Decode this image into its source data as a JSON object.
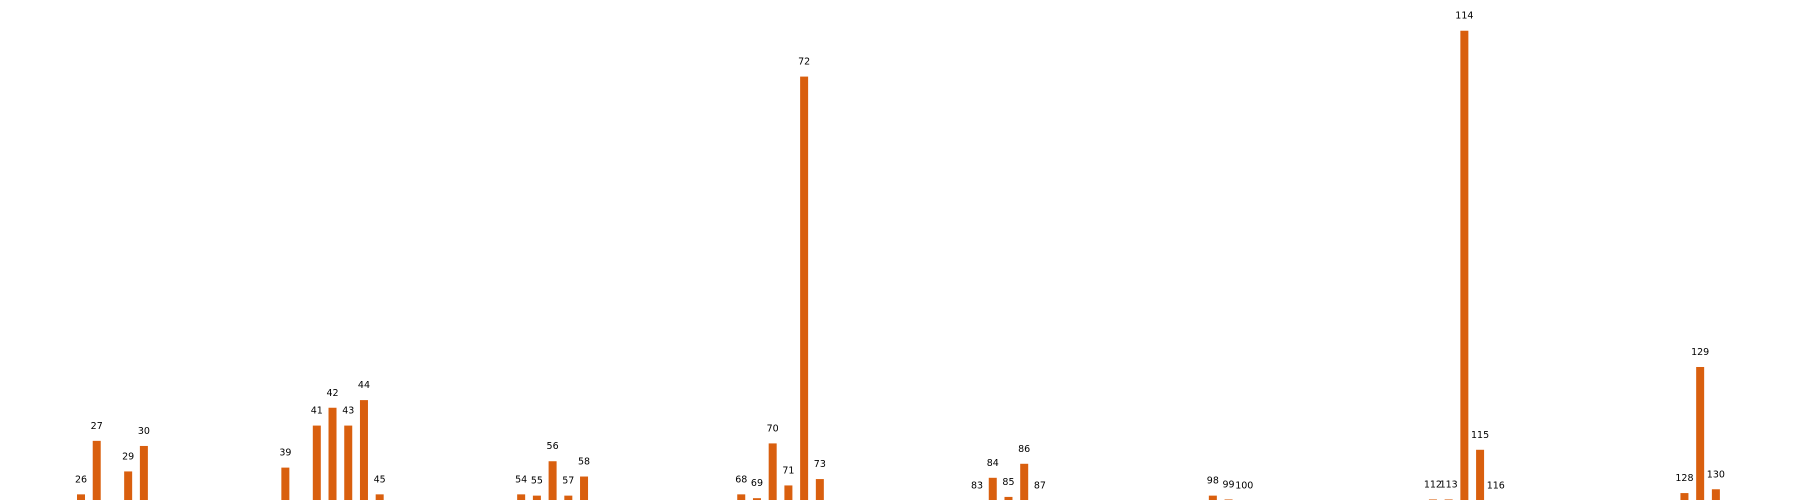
{
  "chart_data": {
    "type": "bar",
    "title": "",
    "xlabel": "",
    "ylabel": "",
    "grid": false,
    "ylim": [
      0,
      190
    ],
    "bar_color": "#d95f0e",
    "bars": [
      {
        "label": "26",
        "value": 3
      },
      {
        "label": "27",
        "value": 24
      },
      {
        "label": "29",
        "value": 12
      },
      {
        "label": "30",
        "value": 22
      },
      {
        "label": "39",
        "value": 13.5
      },
      {
        "label": "41",
        "value": 30
      },
      {
        "label": "42",
        "value": 37
      },
      {
        "label": "43",
        "value": 30
      },
      {
        "label": "44",
        "value": 40
      },
      {
        "label": "45",
        "value": 3
      },
      {
        "label": "54",
        "value": 3
      },
      {
        "label": "55",
        "value": 2.5
      },
      {
        "label": "56",
        "value": 16
      },
      {
        "label": "57",
        "value": 2.5
      },
      {
        "label": "58",
        "value": 10
      },
      {
        "label": "68",
        "value": 3
      },
      {
        "label": "69",
        "value": 1.5
      },
      {
        "label": "70",
        "value": 23
      },
      {
        "label": "71",
        "value": 6.5
      },
      {
        "label": "72",
        "value": 167
      },
      {
        "label": "73",
        "value": 9
      },
      {
        "label": "83",
        "value": 0.5
      },
      {
        "label": "84",
        "value": 9.5
      },
      {
        "label": "85",
        "value": 2
      },
      {
        "label": "86",
        "value": 15
      },
      {
        "label": "87",
        "value": 0.5
      },
      {
        "label": "98",
        "value": 2.5
      },
      {
        "label": "99",
        "value": 1
      },
      {
        "label": "100",
        "value": 0.5
      },
      {
        "label": "112",
        "value": 1
      },
      {
        "label": "113",
        "value": 1
      },
      {
        "label": "114",
        "value": 185
      },
      {
        "label": "115",
        "value": 20.5
      },
      {
        "label": "116",
        "value": 0.5
      },
      {
        "label": "128",
        "value": 3.5
      },
      {
        "label": "129",
        "value": 53
      },
      {
        "label": "130",
        "value": 5
      }
    ]
  }
}
